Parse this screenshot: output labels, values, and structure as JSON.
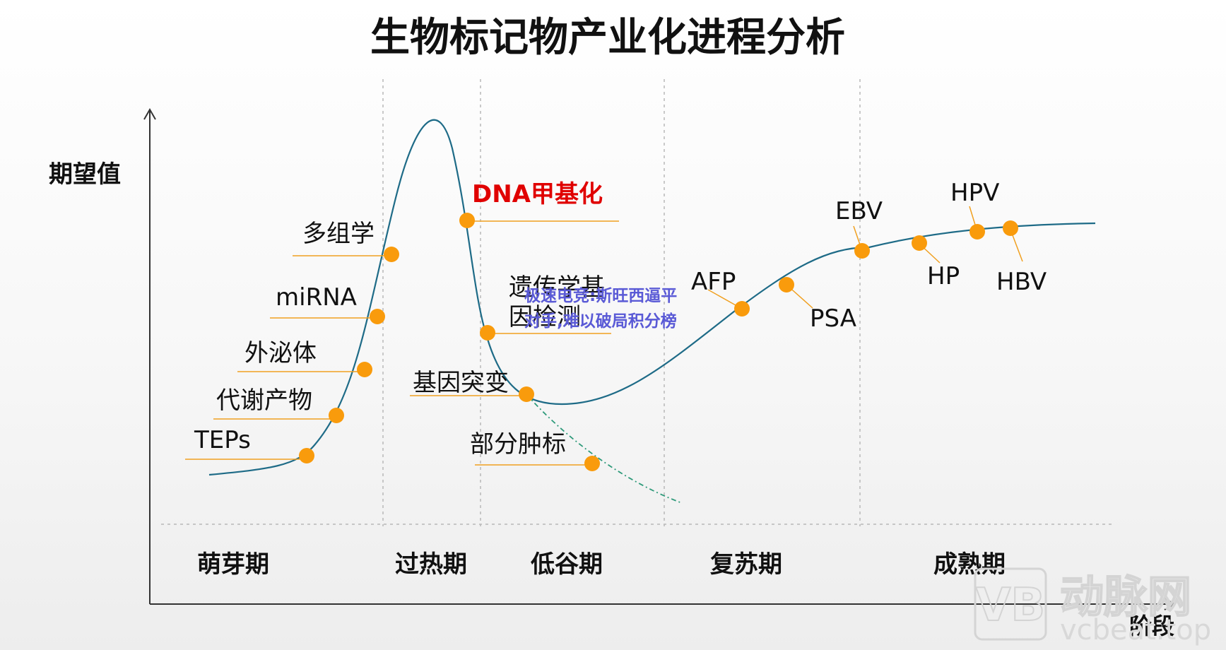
{
  "title": "生物标记物产业化进程分析",
  "axes": {
    "y_label": "期望值",
    "x_label": "阶段"
  },
  "phases": [
    "萌芽期",
    "过热期",
    "低谷期",
    "复苏期",
    "成熟期"
  ],
  "markers": [
    {
      "label": "TEPs"
    },
    {
      "label": "代谢产物"
    },
    {
      "label": "外泌体"
    },
    {
      "label": "miRNA"
    },
    {
      "label": "多组学"
    },
    {
      "label": "DNA甲基化"
    },
    {
      "label": "遗传学基"
    },
    {
      "label": "因检测"
    },
    {
      "label": "基因突变"
    },
    {
      "label": "部分肿标"
    },
    {
      "label": "AFP"
    },
    {
      "label": "PSA"
    },
    {
      "label": "EBV"
    },
    {
      "label": "HP"
    },
    {
      "label": "HPV"
    },
    {
      "label": "HBV"
    }
  ],
  "overlay": {
    "line1": "极速电竞:斯旺西逼平",
    "line2": "对手,难以破局积分榜"
  },
  "watermark": {
    "cn": "动脉网",
    "en": "vcbeat.top"
  },
  "colors": {
    "curve": "#1e6b87",
    "marker": "#f99b0c",
    "leader": "#f0a020",
    "dashed_curve": "#2e9a7a",
    "highlight": "#e00000",
    "overlay": "#5a5ad6"
  }
}
